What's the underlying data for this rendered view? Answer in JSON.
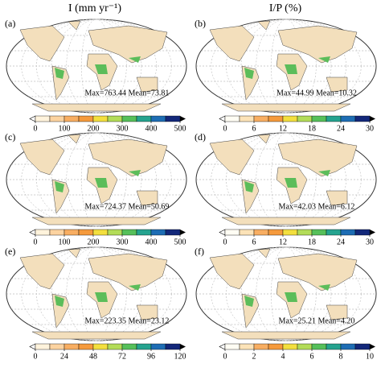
{
  "columns": [
    {
      "title": "I (mm yr⁻¹)"
    },
    {
      "title": "I/P (%)"
    }
  ],
  "panels": [
    {
      "label": "(a)",
      "stats": "Max=763.44 Mean=73.81",
      "colorbar": {
        "lim": [
          0,
          500
        ],
        "ticks": [
          0,
          100,
          200,
          300,
          400,
          500
        ],
        "colors": [
          "#fff3dc",
          "#fcd3a0",
          "#f8ae62",
          "#f59a3c",
          "#f3df3e",
          "#b3dc58",
          "#56c05a",
          "#25a38f",
          "#1e6db4",
          "#13287a"
        ]
      }
    },
    {
      "label": "(b)",
      "stats": "Max=44.99 Mean=10.32",
      "colorbar": {
        "lim": [
          0,
          30
        ],
        "ticks": [
          0,
          6,
          12,
          18,
          24,
          30
        ],
        "colors": [
          "#fffdf4",
          "#fce3b8",
          "#f8ae62",
          "#f59a3c",
          "#f3df3e",
          "#b3dc58",
          "#56c05a",
          "#25a38f",
          "#1e6db4",
          "#13287a"
        ]
      }
    },
    {
      "label": "(c)",
      "stats": "Max=724.37 Mean=50.69",
      "colorbar": {
        "lim": [
          0,
          500
        ],
        "ticks": [
          0,
          100,
          200,
          300,
          400,
          500
        ],
        "colors": [
          "#fff3dc",
          "#fcd3a0",
          "#f8ae62",
          "#f59a3c",
          "#f3df3e",
          "#b3dc58",
          "#56c05a",
          "#25a38f",
          "#1e6db4",
          "#13287a"
        ]
      }
    },
    {
      "label": "(d)",
      "stats": "Max=42.03 Mean=6.12",
      "colorbar": {
        "lim": [
          0,
          30
        ],
        "ticks": [
          0,
          6,
          12,
          18,
          24,
          30
        ],
        "colors": [
          "#fffdf4",
          "#fce3b8",
          "#f8ae62",
          "#f59a3c",
          "#f3df3e",
          "#b3dc58",
          "#56c05a",
          "#25a38f",
          "#1e6db4",
          "#13287a"
        ]
      }
    },
    {
      "label": "(e)",
      "stats": "Max=223.35 Mean=23.12",
      "colorbar": {
        "lim": [
          0,
          120
        ],
        "ticks": [
          0,
          24,
          48,
          72,
          96,
          120
        ],
        "colors": [
          "#fff3dc",
          "#fcd3a0",
          "#f8ae62",
          "#f59a3c",
          "#f3df3e",
          "#b3dc58",
          "#56c05a",
          "#25a38f",
          "#1e6db4",
          "#13287a"
        ]
      }
    },
    {
      "label": "(f)",
      "stats": "Max=25.21 Mean=4.20",
      "colorbar": {
        "lim": [
          0,
          10
        ],
        "ticks": [
          0,
          2,
          4,
          6,
          8,
          10
        ],
        "colors": [
          "#fffdf4",
          "#fce3b8",
          "#f8ae62",
          "#f59a3c",
          "#f3df3e",
          "#b3dc58",
          "#56c05a",
          "#25a38f",
          "#1e6db4",
          "#13287a"
        ]
      }
    }
  ]
}
